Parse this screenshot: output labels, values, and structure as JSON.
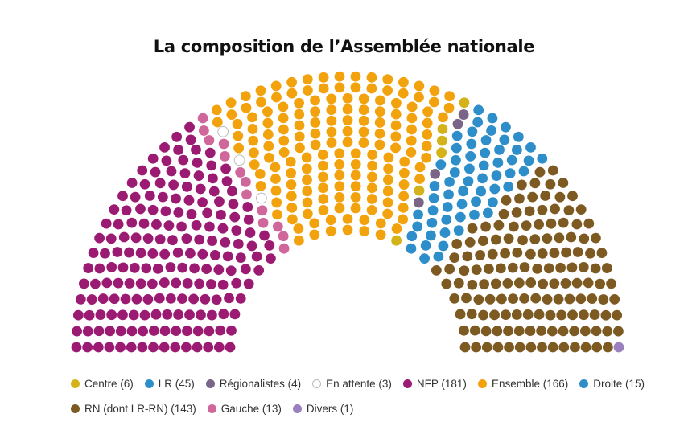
{
  "chart_data": {
    "type": "parliament",
    "title": "La composition de l’Assemblée nationale",
    "total_seats": 577,
    "groups": [
      {
        "name": "NFP",
        "label": "NFP (181)",
        "seats": 181,
        "color": "#9b1b73"
      },
      {
        "name": "Gauche",
        "label": "Gauche (13)",
        "seats": 13,
        "color": "#d0679b"
      },
      {
        "name": "En attente",
        "label": "En attente (3)",
        "seats": 3,
        "color": "#ffffff"
      },
      {
        "name": "Ensemble",
        "label": "Ensemble (166)",
        "seats": 166,
        "color": "#f2a20c"
      },
      {
        "name": "Centre",
        "label": "Centre (6)",
        "seats": 6,
        "color": "#d4b21a"
      },
      {
        "name": "Régionalistes",
        "label": "Régionalistes (4)",
        "seats": 4,
        "color": "#7a6487"
      },
      {
        "name": "LR",
        "label": "LR (45)",
        "seats": 45,
        "color": "#2e8ec9"
      },
      {
        "name": "Droite",
        "label": "Droite (15)",
        "seats": 15,
        "color": "#2e8ec9"
      },
      {
        "name": "RN (dont LR-RN)",
        "label": "RN (dont LR-RN) (143)",
        "seats": 143,
        "color": "#7d5a22"
      },
      {
        "name": "Divers",
        "label": "Divers (1)",
        "seats": 1,
        "color": "#9a80be"
      }
    ],
    "legend_order": [
      [
        "Centre",
        "LR",
        "Régionalistes",
        "En attente",
        "NFP",
        "Ensemble",
        "Droite"
      ],
      [
        "RN (dont LR-RN)",
        "Gauche",
        "Divers"
      ]
    ]
  }
}
